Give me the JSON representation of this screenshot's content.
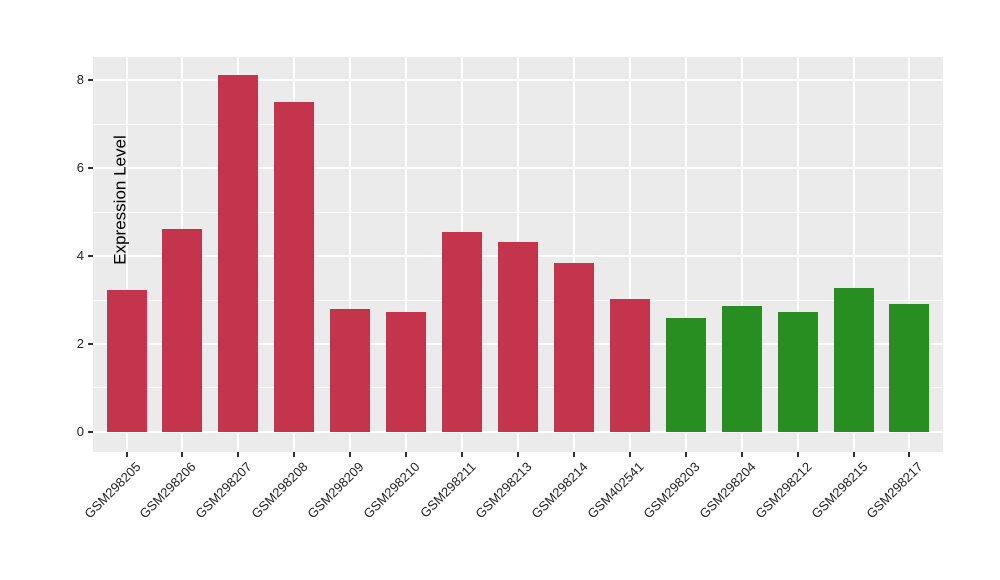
{
  "chart_data": {
    "type": "bar",
    "title": "",
    "ylabel": "Expression Level",
    "xlabel": "",
    "categories": [
      "GSM298205",
      "GSM298206",
      "GSM298207",
      "GSM298208",
      "GSM298209",
      "GSM298210",
      "GSM298211",
      "GSM298213",
      "GSM298214",
      "GSM402541",
      "GSM298203",
      "GSM298204",
      "GSM298212",
      "GSM298215",
      "GSM298217"
    ],
    "values": [
      3.23,
      4.61,
      8.12,
      7.5,
      2.8,
      2.73,
      4.54,
      4.32,
      3.85,
      3.02,
      2.6,
      2.86,
      2.72,
      3.28,
      2.91
    ],
    "bar_colors": [
      "#C4344D",
      "#C4344D",
      "#C4344D",
      "#C4344D",
      "#C4344D",
      "#C4344D",
      "#C4344D",
      "#C4344D",
      "#C4344D",
      "#C4344D",
      "#288E21",
      "#288E21",
      "#288E21",
      "#288E21",
      "#288E21"
    ],
    "group_colors": {
      "red_group": "#C4344D",
      "green_group": "#288E21"
    },
    "yticks": [
      0,
      2,
      4,
      6,
      8
    ],
    "yticks_minor": [
      1,
      3,
      5,
      7
    ],
    "ylim": [
      -0.455,
      8.525
    ],
    "grid": true,
    "legend": "none",
    "panel_bg": "#EBEBEB",
    "grid_color": "#FFFFFF",
    "bar_width_ratio": 0.72
  }
}
